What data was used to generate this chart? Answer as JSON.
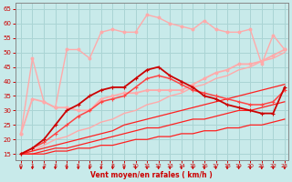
{
  "background_color": "#c8eaea",
  "grid_color": "#aad4d4",
  "xlabel": "Vent moyen/en rafales ( km/h )",
  "xlabel_color": "#cc0000",
  "xlim": [
    -0.5,
    23.3
  ],
  "ylim": [
    13,
    67
  ],
  "yticks": [
    15,
    20,
    25,
    30,
    35,
    40,
    45,
    50,
    55,
    60,
    65
  ],
  "xticks": [
    0,
    1,
    2,
    3,
    4,
    5,
    6,
    7,
    8,
    9,
    10,
    11,
    12,
    13,
    14,
    15,
    16,
    17,
    18,
    19,
    20,
    21,
    22,
    23
  ],
  "series": [
    {
      "x": [
        0,
        1,
        2,
        3,
        4,
        5,
        6,
        7,
        8,
        9,
        10,
        11,
        12,
        13,
        14,
        15,
        16,
        17,
        18,
        19,
        20,
        21,
        22,
        23
      ],
      "y": [
        15,
        15,
        15,
        16,
        16,
        17,
        17,
        18,
        18,
        19,
        20,
        20,
        21,
        21,
        22,
        22,
        23,
        23,
        24,
        24,
        25,
        25,
        26,
        27
      ],
      "color": "#ff2020",
      "linewidth": 0.9,
      "marker": null,
      "markersize": 0,
      "zorder": 3
    },
    {
      "x": [
        0,
        1,
        2,
        3,
        4,
        5,
        6,
        7,
        8,
        9,
        10,
        11,
        12,
        13,
        14,
        15,
        16,
        17,
        18,
        19,
        20,
        21,
        22,
        23
      ],
      "y": [
        15,
        15,
        16,
        17,
        17,
        18,
        19,
        20,
        21,
        22,
        23,
        24,
        24,
        25,
        26,
        27,
        27,
        28,
        29,
        30,
        30,
        31,
        32,
        33
      ],
      "color": "#ff2020",
      "linewidth": 0.9,
      "marker": null,
      "markersize": 0,
      "zorder": 3
    },
    {
      "x": [
        0,
        1,
        2,
        3,
        4,
        5,
        6,
        7,
        8,
        9,
        10,
        11,
        12,
        13,
        14,
        15,
        16,
        17,
        18,
        19,
        20,
        21,
        22,
        23
      ],
      "y": [
        15,
        16,
        17,
        18,
        19,
        20,
        21,
        22,
        23,
        25,
        26,
        27,
        28,
        29,
        30,
        31,
        32,
        33,
        34,
        35,
        36,
        37,
        38,
        39
      ],
      "color": "#ff2020",
      "linewidth": 0.9,
      "marker": null,
      "markersize": 0,
      "zorder": 3
    },
    {
      "x": [
        0,
        1,
        2,
        3,
        4,
        5,
        6,
        7,
        8,
        9,
        10,
        11,
        12,
        13,
        14,
        15,
        16,
        17,
        18,
        19,
        20,
        21,
        22,
        23
      ],
      "y": [
        15,
        16,
        18,
        20,
        21,
        23,
        24,
        26,
        27,
        29,
        30,
        32,
        33,
        35,
        36,
        38,
        39,
        41,
        42,
        44,
        45,
        47,
        48,
        50
      ],
      "color": "#ffaaaa",
      "linewidth": 1.0,
      "marker": null,
      "markersize": 0,
      "zorder": 2
    },
    {
      "x": [
        0,
        1,
        2,
        3,
        4,
        5,
        6,
        7,
        8,
        9,
        10,
        11,
        12,
        13,
        14,
        15,
        16,
        17,
        18,
        19,
        20,
        21,
        22,
        23
      ],
      "y": [
        15,
        17,
        20,
        25,
        30,
        32,
        35,
        37,
        38,
        38,
        41,
        44,
        45,
        42,
        40,
        38,
        35,
        34,
        32,
        31,
        30,
        29,
        29,
        38
      ],
      "color": "#cc0000",
      "linewidth": 1.3,
      "marker": "+",
      "markersize": 3.5,
      "zorder": 5
    },
    {
      "x": [
        0,
        1,
        2,
        3,
        4,
        5,
        6,
        7,
        8,
        9,
        10,
        11,
        12,
        13,
        14,
        15,
        16,
        17,
        18,
        19,
        20,
        21,
        22,
        23
      ],
      "y": [
        15,
        17,
        19,
        22,
        25,
        28,
        30,
        33,
        34,
        35,
        38,
        41,
        42,
        41,
        39,
        37,
        36,
        35,
        34,
        33,
        32,
        32,
        33,
        37
      ],
      "color": "#ff4444",
      "linewidth": 1.1,
      "marker": "+",
      "markersize": 3,
      "zorder": 4
    },
    {
      "x": [
        0,
        1,
        2,
        3,
        4,
        5,
        6,
        7,
        8,
        9,
        10,
        11,
        12,
        13,
        14,
        15,
        16,
        17,
        18,
        19,
        20,
        21,
        22,
        23
      ],
      "y": [
        22,
        34,
        33,
        31,
        31,
        30,
        30,
        34,
        35,
        36,
        36,
        37,
        37,
        37,
        37,
        39,
        41,
        43,
        44,
        46,
        46,
        47,
        49,
        51
      ],
      "color": "#ffaaaa",
      "linewidth": 1.3,
      "marker": "o",
      "markersize": 2,
      "zorder": 2
    },
    {
      "x": [
        0,
        1,
        2,
        3,
        4,
        5,
        6,
        7,
        8,
        9,
        10,
        11,
        12,
        13,
        14,
        15,
        16,
        17,
        18,
        19,
        20,
        21,
        22,
        23
      ],
      "y": [
        22,
        48,
        33,
        31,
        51,
        51,
        48,
        57,
        58,
        57,
        57,
        63,
        62,
        60,
        59,
        58,
        61,
        58,
        57,
        57,
        58,
        46,
        56,
        51
      ],
      "color": "#ffaaaa",
      "linewidth": 1.0,
      "marker": "o",
      "markersize": 2,
      "zorder": 2
    }
  ],
  "arrow_color": "#cc0000",
  "tick_color": "#cc0000",
  "axis_color": "#888888"
}
